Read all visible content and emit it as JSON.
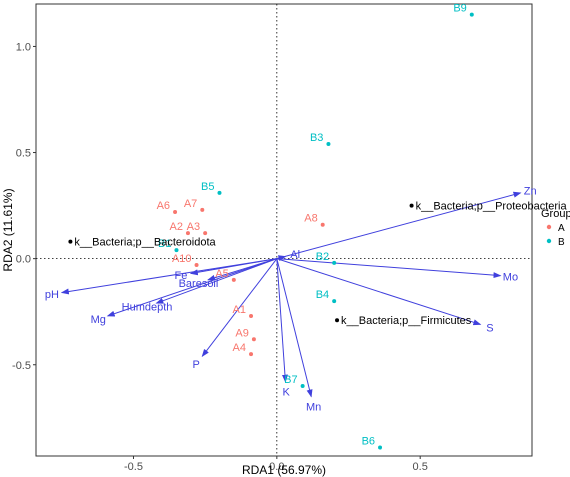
{
  "chart_data": {
    "type": "scatter",
    "xlabel": "RDA1 (56.97%)",
    "ylabel": "RDA2 (11.61%)",
    "xlim": [
      -0.84,
      0.89
    ],
    "ylim": [
      -0.93,
      1.2
    ],
    "xticks": [
      -0.5,
      0.0,
      0.5
    ],
    "xtick_labels": [
      "-0.5",
      "0.0",
      "0.5"
    ],
    "yticks": [
      -0.5,
      0.0,
      0.5,
      1.0
    ],
    "ytick_labels": [
      "-0.5",
      "0.0",
      "0.5",
      "1.0"
    ],
    "grid": false,
    "legend": {
      "title": "Group",
      "placement": "right",
      "entries": [
        {
          "label": "A",
          "color": "#f8766d"
        },
        {
          "label": "B",
          "color": "#00bfc4"
        }
      ]
    },
    "groups": [
      {
        "name": "A",
        "color": "#f8766d",
        "points": [
          {
            "label": "A6",
            "x": -0.355,
            "y": 0.22
          },
          {
            "label": "A7",
            "x": -0.26,
            "y": 0.23
          },
          {
            "label": "A2",
            "x": -0.31,
            "y": 0.12
          },
          {
            "label": "A3",
            "x": -0.25,
            "y": 0.12
          },
          {
            "label": "A8",
            "x": 0.16,
            "y": 0.16
          },
          {
            "label": "A10",
            "x": -0.28,
            "y": -0.03
          },
          {
            "label": "A5",
            "x": -0.15,
            "y": -0.1
          },
          {
            "label": "A1",
            "x": -0.09,
            "y": -0.27
          },
          {
            "label": "A9",
            "x": -0.08,
            "y": -0.38
          },
          {
            "label": "A4",
            "x": -0.09,
            "y": -0.45
          }
        ]
      },
      {
        "name": "B",
        "color": "#00bfc4",
        "points": [
          {
            "label": "B9",
            "x": 0.68,
            "y": 1.15
          },
          {
            "label": "B3",
            "x": 0.18,
            "y": 0.54
          },
          {
            "label": "B5",
            "x": -0.2,
            "y": 0.31
          },
          {
            "label": "B1",
            "x": -0.35,
            "y": 0.04
          },
          {
            "label": "B2",
            "x": 0.2,
            "y": -0.02
          },
          {
            "label": "B4",
            "x": 0.2,
            "y": -0.2
          },
          {
            "label": "B7",
            "x": 0.09,
            "y": -0.6
          },
          {
            "label": "B6",
            "x": 0.36,
            "y": -0.89
          }
        ]
      }
    ],
    "env_vectors": [
      {
        "label": "Zn",
        "x": 0.85,
        "y": 0.31
      },
      {
        "label": "Mo",
        "x": 0.78,
        "y": -0.08
      },
      {
        "label": "S",
        "x": 0.71,
        "y": -0.31
      },
      {
        "label": "pH",
        "x": -0.75,
        "y": -0.16
      },
      {
        "label": "Mg",
        "x": -0.59,
        "y": -0.27
      },
      {
        "label": "Humdepth",
        "x": -0.42,
        "y": -0.21
      },
      {
        "label": "Fe",
        "x": -0.3,
        "y": -0.07
      },
      {
        "label": "Baresoil",
        "x": -0.24,
        "y": -0.1
      },
      {
        "label": "P",
        "x": -0.26,
        "y": -0.46
      },
      {
        "label": "K",
        "x": 0.03,
        "y": -0.58
      },
      {
        "label": "Mn",
        "x": 0.12,
        "y": -0.65
      },
      {
        "label": "Al",
        "x": 0.03,
        "y": 0.01
      }
    ],
    "species": [
      {
        "label": "k__Bacteria;p__Bacteroidota",
        "x": -0.72,
        "y": 0.08
      },
      {
        "label": "k__Bacteria;p__Proteobacteria",
        "x": 0.47,
        "y": 0.25
      },
      {
        "label": "k__Bacteria;p__Firmicutes",
        "x": 0.21,
        "y": -0.29
      }
    ],
    "reference_lines": {
      "x": 0,
      "y": 0,
      "style": "dotted"
    }
  }
}
